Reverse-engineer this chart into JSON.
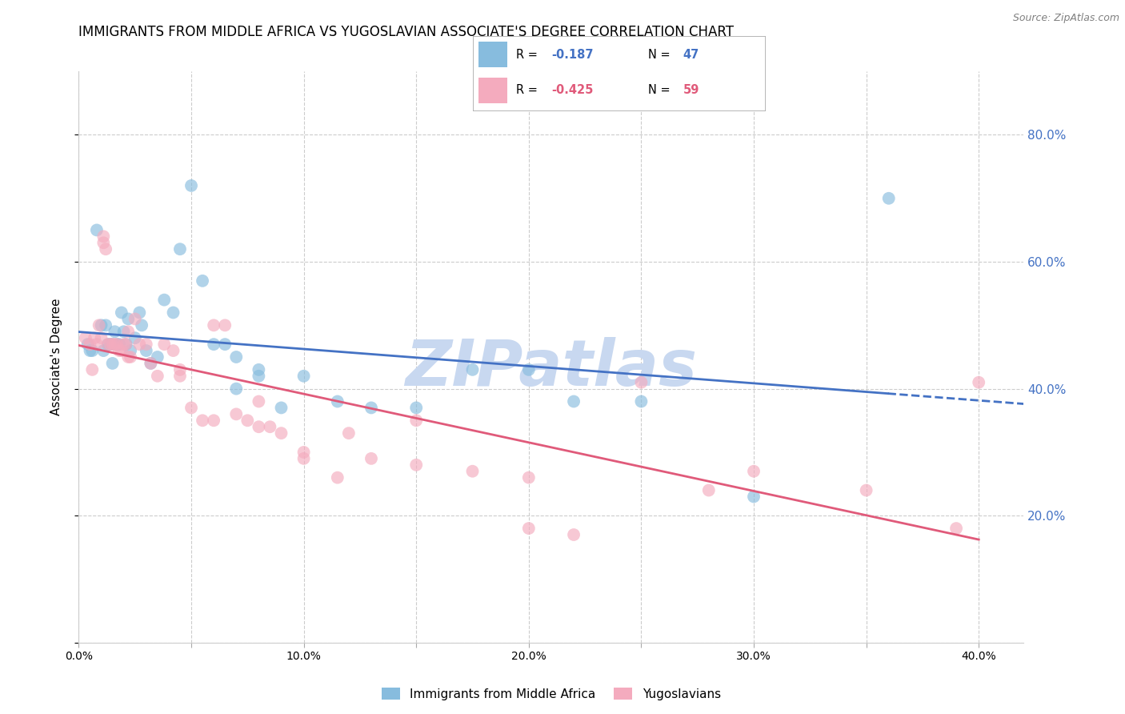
{
  "title": "IMMIGRANTS FROM MIDDLE AFRICA VS YUGOSLAVIAN ASSOCIATE'S DEGREE CORRELATION CHART",
  "source": "Source: ZipAtlas.com",
  "ylabel": "Associate's Degree",
  "xlim": [
    0.0,
    0.42
  ],
  "ylim": [
    0.0,
    0.9
  ],
  "blue_R": -0.187,
  "blue_N": 47,
  "pink_R": -0.425,
  "pink_N": 59,
  "blue_color": "#87BCDE",
  "pink_color": "#F4ABBE",
  "blue_line_color": "#4472C4",
  "pink_line_color": "#E05A7A",
  "watermark": "ZIPatlas",
  "watermark_color": "#C8D8F0",
  "legend_label_blue": "Immigrants from Middle Africa",
  "legend_label_pink": "Yugoslavians",
  "blue_x": [
    0.004,
    0.006,
    0.008,
    0.01,
    0.011,
    0.012,
    0.013,
    0.014,
    0.015,
    0.016,
    0.017,
    0.018,
    0.019,
    0.02,
    0.021,
    0.022,
    0.023,
    0.025,
    0.027,
    0.03,
    0.032,
    0.035,
    0.038,
    0.042,
    0.045,
    0.05,
    0.055,
    0.06,
    0.065,
    0.07,
    0.08,
    0.09,
    0.1,
    0.115,
    0.13,
    0.15,
    0.175,
    0.2,
    0.22,
    0.25,
    0.3,
    0.36,
    0.005,
    0.015,
    0.028,
    0.07,
    0.08
  ],
  "blue_y": [
    0.47,
    0.46,
    0.65,
    0.5,
    0.46,
    0.5,
    0.47,
    0.47,
    0.47,
    0.49,
    0.47,
    0.47,
    0.52,
    0.49,
    0.47,
    0.51,
    0.46,
    0.48,
    0.52,
    0.46,
    0.44,
    0.45,
    0.54,
    0.52,
    0.62,
    0.72,
    0.57,
    0.47,
    0.47,
    0.45,
    0.42,
    0.37,
    0.42,
    0.38,
    0.37,
    0.37,
    0.43,
    0.43,
    0.38,
    0.38,
    0.23,
    0.7,
    0.46,
    0.44,
    0.5,
    0.4,
    0.43
  ],
  "pink_x": [
    0.003,
    0.005,
    0.007,
    0.008,
    0.009,
    0.01,
    0.011,
    0.012,
    0.013,
    0.014,
    0.015,
    0.016,
    0.017,
    0.018,
    0.019,
    0.02,
    0.021,
    0.022,
    0.023,
    0.025,
    0.027,
    0.03,
    0.032,
    0.035,
    0.038,
    0.042,
    0.045,
    0.05,
    0.055,
    0.06,
    0.065,
    0.07,
    0.075,
    0.08,
    0.085,
    0.09,
    0.1,
    0.115,
    0.13,
    0.15,
    0.175,
    0.2,
    0.22,
    0.25,
    0.3,
    0.35,
    0.39,
    0.006,
    0.011,
    0.022,
    0.045,
    0.06,
    0.08,
    0.12,
    0.15,
    0.2,
    0.28,
    0.4,
    0.1
  ],
  "pink_y": [
    0.48,
    0.47,
    0.48,
    0.47,
    0.5,
    0.48,
    0.63,
    0.62,
    0.47,
    0.47,
    0.47,
    0.47,
    0.47,
    0.46,
    0.46,
    0.47,
    0.47,
    0.45,
    0.45,
    0.51,
    0.47,
    0.47,
    0.44,
    0.42,
    0.47,
    0.46,
    0.42,
    0.37,
    0.35,
    0.35,
    0.5,
    0.36,
    0.35,
    0.38,
    0.34,
    0.33,
    0.29,
    0.26,
    0.29,
    0.35,
    0.27,
    0.18,
    0.17,
    0.41,
    0.27,
    0.24,
    0.18,
    0.43,
    0.64,
    0.49,
    0.43,
    0.5,
    0.34,
    0.33,
    0.28,
    0.26,
    0.24,
    0.41,
    0.3
  ],
  "background_color": "#ffffff",
  "grid_color": "#cccccc",
  "right_tick_color": "#4472C4"
}
